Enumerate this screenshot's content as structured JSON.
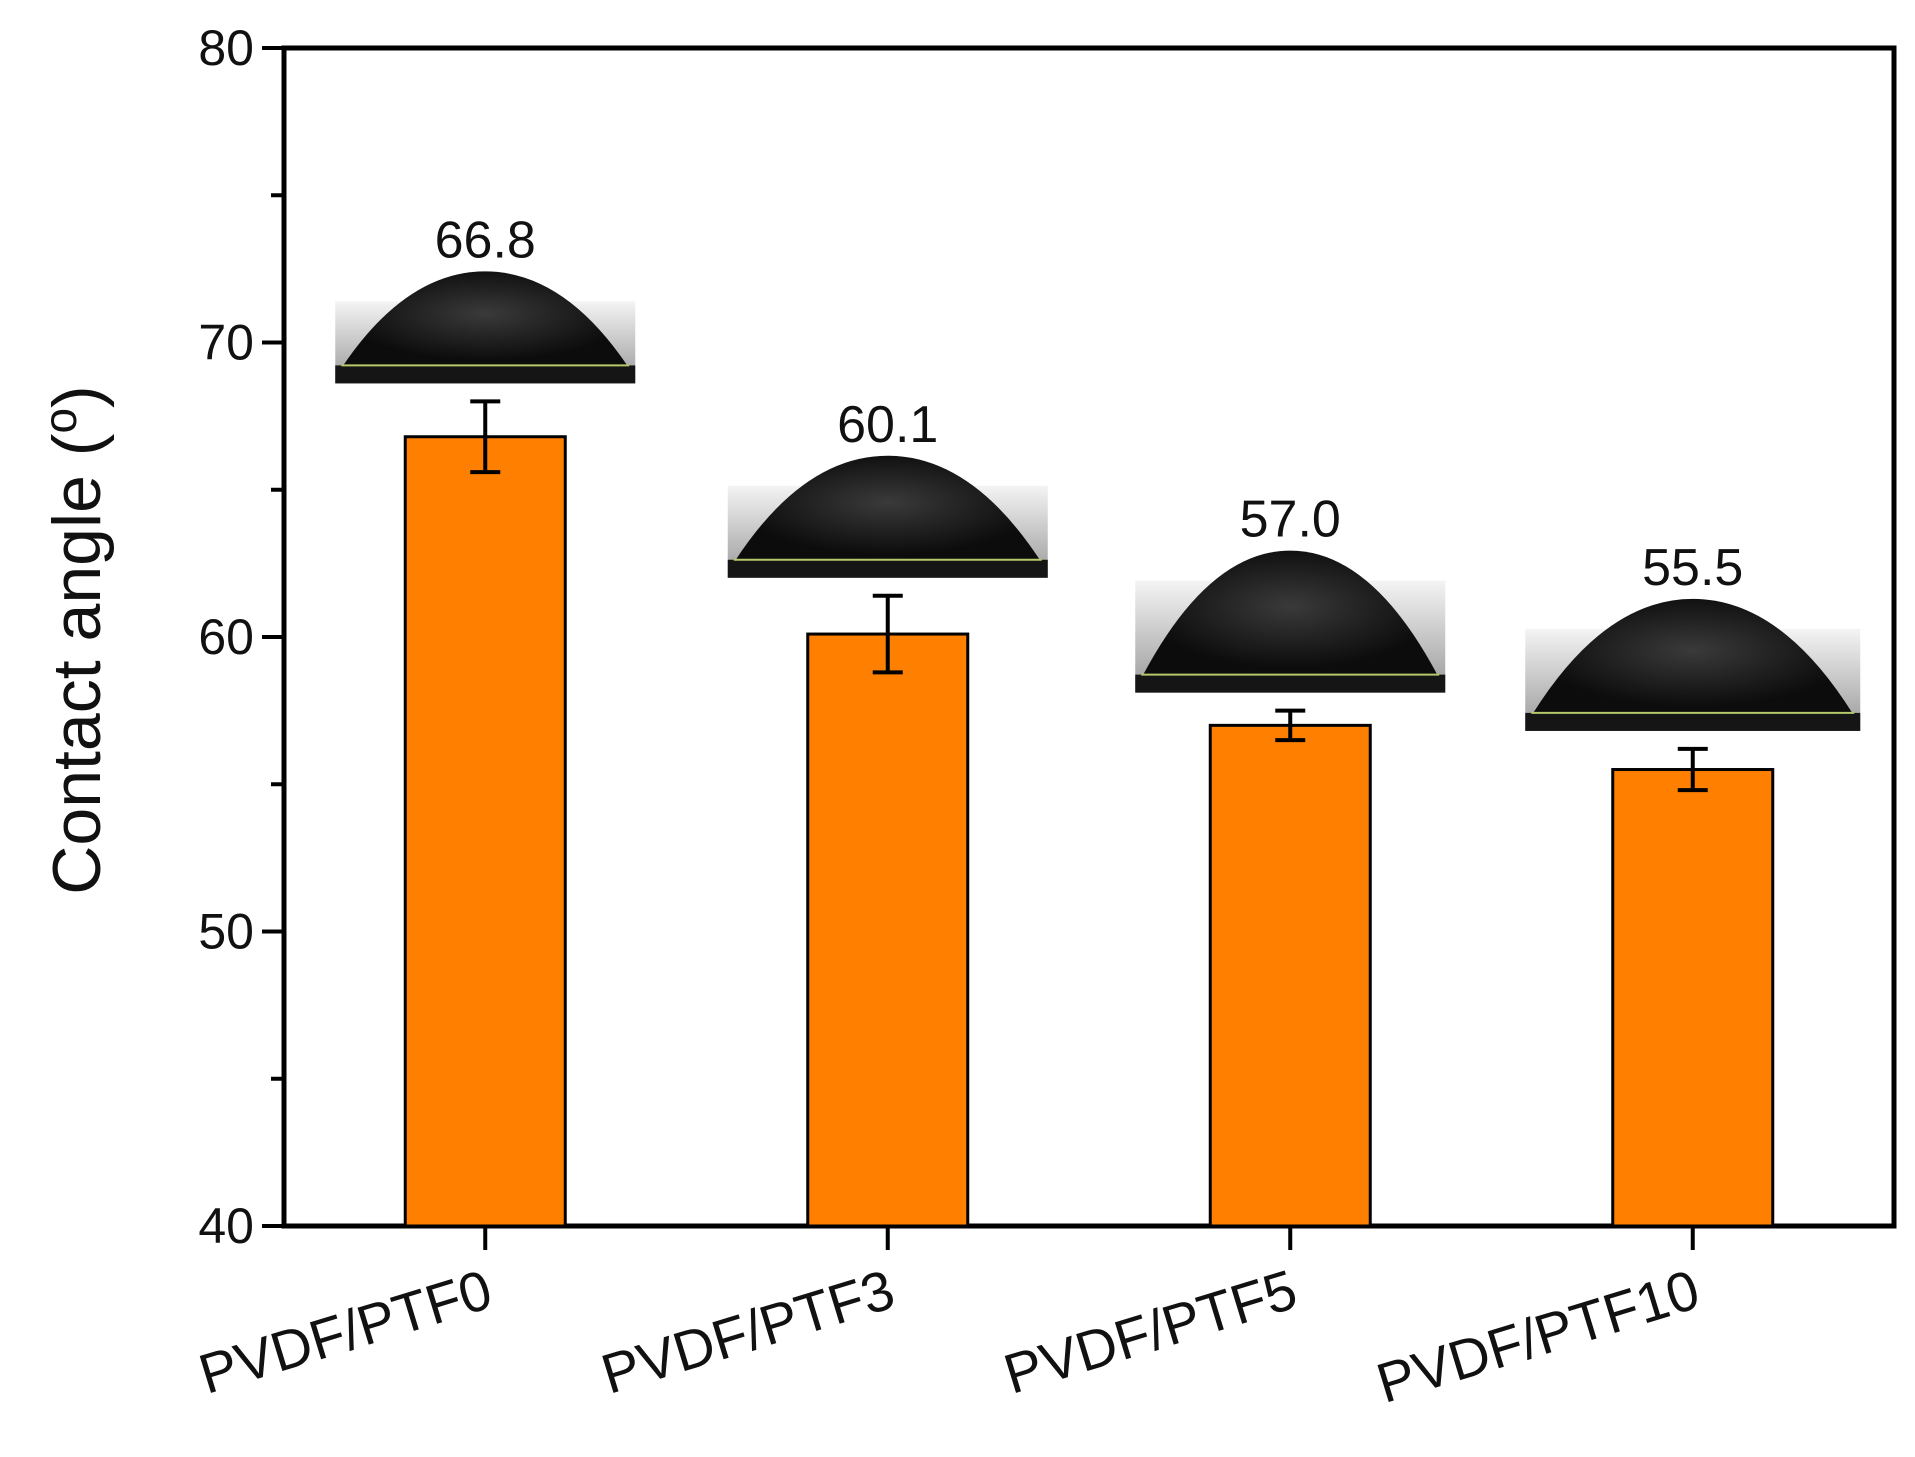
{
  "chart_data": {
    "type": "bar",
    "categories": [
      "PVDF/PTF0",
      "PVDF/PTF3",
      "PVDF/PTF5",
      "PVDF/PTF10"
    ],
    "values": [
      66.8,
      60.1,
      57.0,
      55.5
    ],
    "errors": [
      1.2,
      1.3,
      0.5,
      0.7
    ],
    "data_labels": [
      "66.8",
      "60.1",
      "57.0",
      "55.5"
    ],
    "ylabel": "Contact angle (°)",
    "ylabel_main": "Contact angle (",
    "ylabel_degree": "o",
    "ylabel_close": ")",
    "xlabel": "",
    "ylim": [
      40,
      80
    ],
    "yticks": [
      40,
      50,
      60,
      70,
      80
    ],
    "ytick_labels": [
      "40",
      "50",
      "60",
      "70",
      "80"
    ],
    "bar_color": "#FF8000",
    "grid": false,
    "inset_images": "water droplet contact-angle photos above each bar"
  }
}
